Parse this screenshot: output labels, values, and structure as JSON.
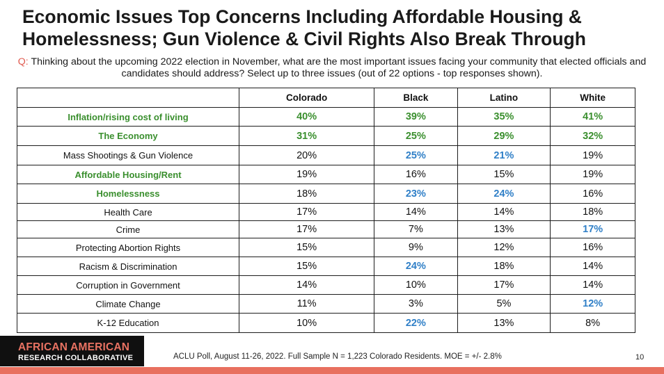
{
  "slide": {
    "title_line1": "Economic Issues Top Concerns Including Affordable Housing &",
    "title_line2": "Homelessness; Gun Violence & Civil Rights Also Break Through",
    "question_prefix": "Q:",
    "question_text": "Thinking about the upcoming 2022 election in November, what are the most important issues facing your community that elected officials and candidates should address? Select up to three issues (out of 22 options - top responses shown).",
    "page_number": "10",
    "footer_note": "ACLU Poll, August 11-26, 2022. Full Sample N = 1,223 Colorado Residents. MOE = +/- 2.8%"
  },
  "logo": {
    "line1": "AFRICAN AMERICAN",
    "line2": "RESEARCH COLLABORATIVE"
  },
  "colors": {
    "green_highlight": "#3a8f2e",
    "blue_highlight": "#2f7fc7",
    "accent_bar": "#e8705f",
    "question_prefix": "#e05a4f"
  },
  "table": {
    "columns": [
      "",
      "Colorado",
      "Black",
      "Latino",
      "White"
    ],
    "rows": [
      {
        "label": "Inflation/rising cost of living",
        "green": true,
        "values": [
          "40%",
          "39%",
          "35%",
          "41%"
        ],
        "highlight": [
          false,
          false,
          false,
          false
        ]
      },
      {
        "label": "The Economy",
        "green": true,
        "values": [
          "31%",
          "25%",
          "29%",
          "32%"
        ],
        "highlight": [
          false,
          false,
          false,
          false
        ]
      },
      {
        "label": "Mass Shootings & Gun Violence",
        "green": false,
        "values": [
          "20%",
          "25%",
          "21%",
          "19%"
        ],
        "highlight": [
          false,
          true,
          true,
          false
        ]
      },
      {
        "label": "Affordable Housing/Rent",
        "green": true,
        "label_only": true,
        "values": [
          "19%",
          "16%",
          "15%",
          "19%"
        ],
        "highlight": [
          false,
          false,
          false,
          false
        ]
      },
      {
        "label": "Homelessness",
        "green": true,
        "label_only": true,
        "values": [
          "18%",
          "23%",
          "24%",
          "16%"
        ],
        "highlight": [
          false,
          true,
          true,
          false
        ]
      },
      {
        "label": "Health Care",
        "green": false,
        "values": [
          "17%",
          "14%",
          "14%",
          "18%"
        ],
        "highlight": [
          false,
          false,
          false,
          false
        ]
      },
      {
        "label": "Crime",
        "green": false,
        "values": [
          "17%",
          "7%",
          "13%",
          "17%"
        ],
        "highlight": [
          false,
          false,
          false,
          true
        ]
      },
      {
        "label": "Protecting Abortion Rights",
        "green": false,
        "values": [
          "15%",
          "9%",
          "12%",
          "16%"
        ],
        "highlight": [
          false,
          false,
          false,
          false
        ]
      },
      {
        "label": "Racism & Discrimination",
        "green": false,
        "values": [
          "15%",
          "24%",
          "18%",
          "14%"
        ],
        "highlight": [
          false,
          true,
          false,
          false
        ]
      },
      {
        "label": "Corruption in Government",
        "green": false,
        "values": [
          "14%",
          "10%",
          "17%",
          "14%"
        ],
        "highlight": [
          false,
          false,
          false,
          false
        ]
      },
      {
        "label": "Climate Change",
        "green": false,
        "values": [
          "11%",
          "3%",
          "5%",
          "12%"
        ],
        "highlight": [
          false,
          false,
          false,
          true
        ]
      },
      {
        "label": "K-12 Education",
        "green": false,
        "values": [
          "10%",
          "22%",
          "13%",
          "8%"
        ],
        "highlight": [
          false,
          true,
          false,
          false
        ]
      }
    ]
  }
}
